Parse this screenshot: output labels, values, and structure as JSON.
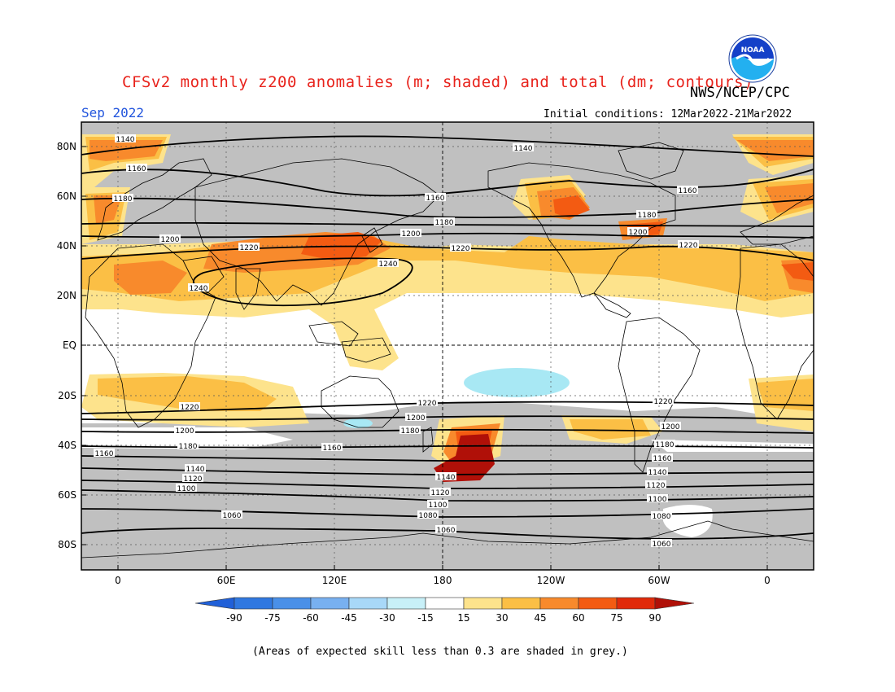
{
  "header": {
    "title": "CFSv2 monthly z200 anomalies (m; shaded) and total (dm; contours)",
    "agency": "NWS/NCEP/CPC",
    "month": "Sep 2022",
    "initial_conditions": "Initial conditions: 12Mar2022-21Mar2022",
    "logo_text": "NOAA"
  },
  "map": {
    "lat_labels": [
      "80N",
      "60N",
      "40N",
      "20N",
      "EQ",
      "20S",
      "40S",
      "60S",
      "80S"
    ],
    "lon_labels": [
      "0",
      "60E",
      "120E",
      "180",
      "120W",
      "60W",
      "0"
    ],
    "contour_labels": [
      "1140",
      "1160",
      "1180",
      "1200",
      "1220",
      "1240",
      "1220",
      "1200",
      "1180",
      "1160",
      "1140",
      "1120",
      "1100",
      "1080",
      "1060"
    ]
  },
  "colorbar": {
    "ticks": [
      "-90",
      "-75",
      "-60",
      "-45",
      "-30",
      "-15",
      "15",
      "30",
      "45",
      "60",
      "75",
      "90"
    ],
    "colors": [
      "#2060d8",
      "#3078e0",
      "#4a90e8",
      "#78b0f0",
      "#a8d8f8",
      "#c8f0f8",
      "#ffffff",
      "#fde38c",
      "#fbbf45",
      "#f88a2c",
      "#f35b12",
      "#e02a0a",
      "#b01008"
    ]
  },
  "footnote": "(Areas of expected skill less than 0.3 are shaded in grey.)"
}
